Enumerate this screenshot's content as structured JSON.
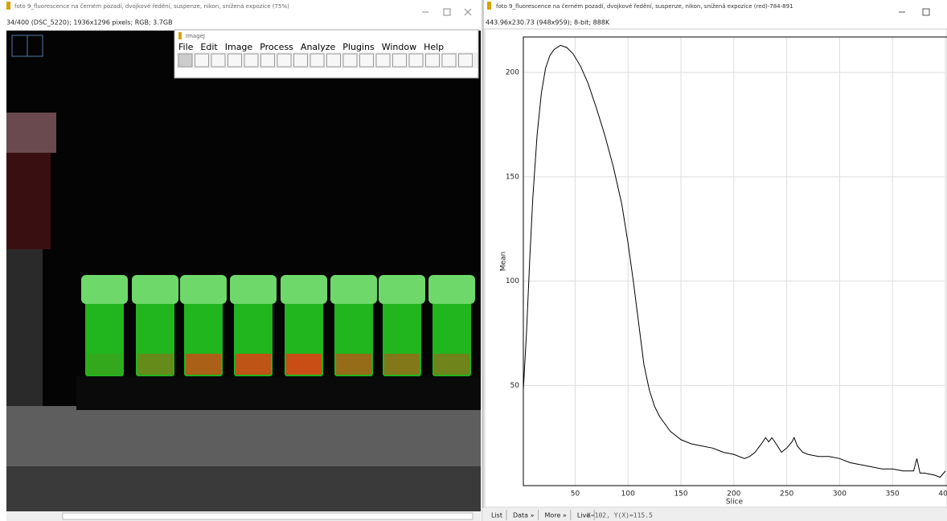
{
  "left_window": {
    "title": "foto 9_fluorescence na černém pozadí, dvojkové ředění, suspenze, nikon, snížená expozice (75%)",
    "info": "34/400 (DSC_5220); 1936x1296 pixels; RGB; 3.7GB"
  },
  "imagej": {
    "title": "ImageJ",
    "menu": [
      "File",
      "Edit",
      "Image",
      "Process",
      "Analyze",
      "Plugins",
      "Window",
      "Help"
    ]
  },
  "right_window": {
    "title": "foto 9_fluorescence na černém pozadí, dvojkové ředění, suspenze, nikon, snížená expozice (red)-784-891",
    "info": "443.96x230.73  (948x959); 8-bit; 888K"
  },
  "chart_data": {
    "type": "line",
    "x_label": "Slice",
    "y_label": "Mean",
    "x": [
      1,
      4,
      7,
      10,
      14,
      18,
      22,
      26,
      30,
      36,
      42,
      48,
      55,
      62,
      70,
      78,
      86,
      94,
      100,
      105,
      110,
      115,
      120,
      125,
      130,
      140,
      150,
      160,
      170,
      180,
      190,
      200,
      210,
      215,
      220,
      226,
      230,
      233,
      236,
      240,
      245,
      250,
      255,
      257,
      260,
      265,
      270,
      280,
      290,
      300,
      310,
      320,
      330,
      340,
      350,
      360,
      370,
      373,
      376,
      380,
      390,
      395,
      400
    ],
    "values": [
      48,
      75,
      110,
      140,
      170,
      190,
      202,
      208,
      211,
      213,
      212,
      209,
      203,
      195,
      183,
      170,
      155,
      137,
      118,
      100,
      80,
      60,
      48,
      40,
      35,
      28,
      24,
      22,
      21,
      20,
      18,
      17,
      15,
      16,
      18,
      22,
      25,
      23,
      25,
      22,
      18,
      20,
      23,
      25,
      21,
      18,
      17,
      16,
      16,
      15,
      13,
      12,
      11,
      10,
      10,
      9,
      9,
      15,
      8,
      8,
      7,
      6,
      9
    ],
    "color": "#000000",
    "xlim": [
      1,
      400
    ],
    "ylim": [
      2,
      217
    ],
    "xticks": [
      50,
      100,
      150,
      200,
      250,
      300,
      350,
      400
    ],
    "yticks": [
      50,
      100,
      150,
      200
    ],
    "grid": true
  },
  "plot_buttons": [
    "List",
    "Data »",
    "More »",
    "Live"
  ],
  "status": "X=102, Y(X)=115.5"
}
